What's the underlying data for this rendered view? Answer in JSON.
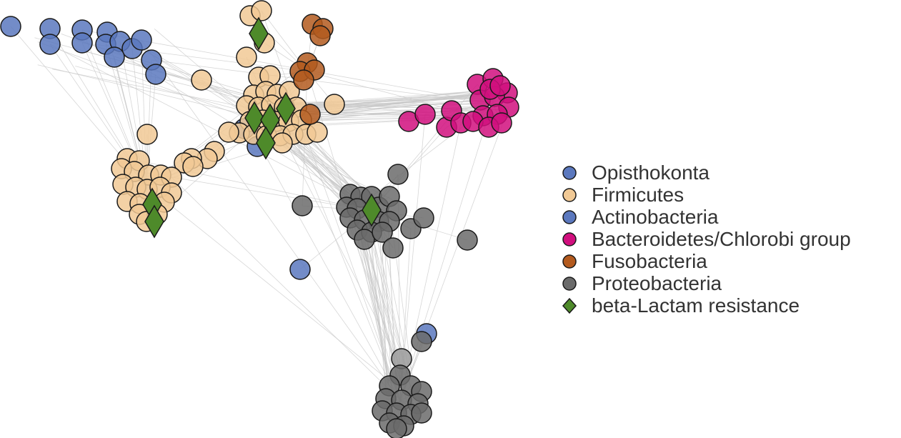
{
  "legend": {
    "items": [
      {
        "key": "opisthokonta",
        "label": "Opisthokonta",
        "shape": "circle",
        "color": "#5B78BE"
      },
      {
        "key": "firmicutes",
        "label": "Firmicutes",
        "shape": "circle",
        "color": "#F1C995"
      },
      {
        "key": "actinobacteria",
        "label": "Actinobacteria",
        "shape": "circle",
        "color": "#5B78BE"
      },
      {
        "key": "bacteroidetes",
        "label": "Bacteroidetes/Chlorobi group",
        "shape": "circle",
        "color": "#D10F7E"
      },
      {
        "key": "fusobacteria",
        "label": "Fusobacteria",
        "shape": "circle",
        "color": "#B35A1E"
      },
      {
        "key": "proteobacteria",
        "label": "Proteobacteria",
        "shape": "circle",
        "color": "#6B6B6B"
      },
      {
        "key": "betalactam",
        "label": "beta-Lactam resistance",
        "shape": "diamond",
        "color": "#4E8A2A"
      }
    ]
  },
  "colors": {
    "edge": "#c8c8c8",
    "node_stroke": "#1a1a1a",
    "proteobacteria_light": "#9a9a9a"
  }
}
